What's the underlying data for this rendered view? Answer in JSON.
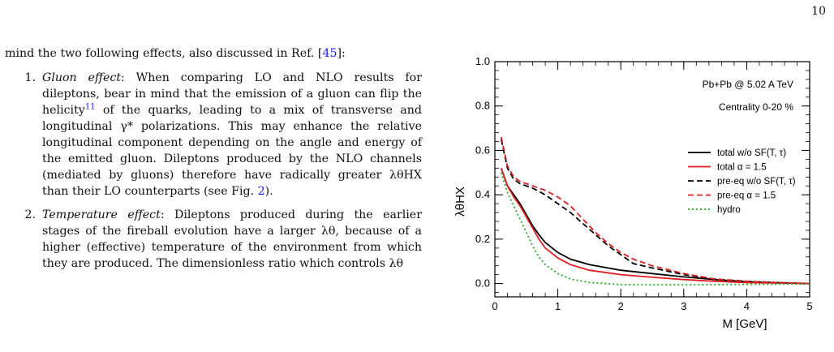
{
  "page": {
    "number": "10"
  },
  "text": {
    "intro_before": "mind the two following effects, also discussed in Ref. [",
    "intro_ref": "45",
    "intro_after": "]:",
    "items": [
      {
        "num": "1.",
        "title": "Gluon effect",
        "part1": ": When comparing LO and NLO results for dileptons, bear in mind that the emission of a gluon can flip the helicity",
        "footnote": "11",
        "part2": " of the quarks, leading to a mix of transverse and longitudinal γ* polarizations. This may enhance the relative longitudinal component depending on the angle and energy of the emitted gluon. Dileptons produced by the NLO channels (mediated by gluons) therefore have radically greater λθHX than their LO counterparts (see Fig. ",
        "figref": "2",
        "part3": ")."
      },
      {
        "num": "2.",
        "title": "Temperature effect",
        "part1": ": Dileptons produced during the earlier stages of the fireball evolution have a larger λθ, because of a higher (effective) temperature of the environment from which they are produced. The dimensionless ratio which controls λθ",
        "footnote": "",
        "part2": "",
        "figref": "",
        "part3": ""
      }
    ]
  },
  "chart_data": {
    "type": "line",
    "annotations": [
      "Pb+Pb @ 5.02 A TeV",
      "Centrality 0-20 %"
    ],
    "xlabel": "M [GeV]",
    "ylabel": "λθHX",
    "xlim": [
      0,
      5
    ],
    "ylim": [
      -0.06,
      1.0
    ],
    "xticks": [
      "0",
      "1",
      "2",
      "3",
      "4",
      "5"
    ],
    "yticks": [
      "0.0",
      "0.2",
      "0.4",
      "0.6",
      "0.8",
      "1.0"
    ],
    "grid": false,
    "legend_position": "right",
    "series": [
      {
        "name": "total w/o SF(T, τ)",
        "color": "#000000",
        "dash": "solid",
        "x": [
          0.1,
          0.2,
          0.3,
          0.4,
          0.5,
          0.6,
          0.7,
          0.8,
          1.0,
          1.2,
          1.5,
          2.0,
          2.5,
          3.0,
          3.5,
          4.0,
          4.5,
          5.0
        ],
        "y": [
          0.52,
          0.44,
          0.4,
          0.36,
          0.31,
          0.26,
          0.22,
          0.185,
          0.14,
          0.11,
          0.085,
          0.06,
          0.045,
          0.03,
          0.018,
          0.008,
          0.004,
          0.0
        ]
      },
      {
        "name": "total α = 1.5",
        "color": "#e02020",
        "dash": "solid",
        "x": [
          0.1,
          0.2,
          0.3,
          0.4,
          0.5,
          0.6,
          0.7,
          0.8,
          1.0,
          1.2,
          1.5,
          2.0,
          2.5,
          3.0,
          3.5,
          4.0,
          4.5,
          5.0
        ],
        "y": [
          0.52,
          0.44,
          0.39,
          0.35,
          0.3,
          0.25,
          0.2,
          0.16,
          0.115,
          0.085,
          0.06,
          0.04,
          0.028,
          0.018,
          0.01,
          0.004,
          0.002,
          0.0
        ]
      },
      {
        "name": "pre-eq w/o SF(T, τ)",
        "color": "#000000",
        "dash": "dashed",
        "x": [
          0.1,
          0.2,
          0.3,
          0.4,
          0.5,
          0.6,
          0.8,
          1.0,
          1.2,
          1.4,
          1.6,
          1.8,
          2.0,
          2.2,
          2.5,
          3.0,
          3.5,
          4.0,
          4.5,
          5.0
        ],
        "y": [
          0.65,
          0.52,
          0.47,
          0.45,
          0.44,
          0.43,
          0.4,
          0.36,
          0.32,
          0.27,
          0.22,
          0.17,
          0.13,
          0.09,
          0.07,
          0.04,
          0.02,
          0.01,
          0.004,
          0.0
        ]
      },
      {
        "name": "pre-eq α = 1.5",
        "color": "#e02020",
        "dash": "dashed",
        "x": [
          0.1,
          0.2,
          0.3,
          0.4,
          0.5,
          0.6,
          0.8,
          1.0,
          1.2,
          1.4,
          1.6,
          1.8,
          2.0,
          2.2,
          2.5,
          3.0,
          3.5,
          4.0,
          4.5,
          5.0
        ],
        "y": [
          0.66,
          0.53,
          0.48,
          0.46,
          0.45,
          0.44,
          0.42,
          0.39,
          0.35,
          0.29,
          0.23,
          0.18,
          0.14,
          0.11,
          0.08,
          0.045,
          0.02,
          0.01,
          0.004,
          0.0
        ]
      },
      {
        "name": "hydro",
        "color": "#22aa22",
        "dash": "dotted",
        "x": [
          0.1,
          0.2,
          0.3,
          0.4,
          0.5,
          0.6,
          0.7,
          0.8,
          1.0,
          1.2,
          1.5,
          2.0,
          2.5,
          3.0,
          3.5,
          4.0,
          4.5,
          5.0
        ],
        "y": [
          0.5,
          0.41,
          0.35,
          0.29,
          0.23,
          0.17,
          0.12,
          0.085,
          0.045,
          0.02,
          0.005,
          -0.005,
          -0.006,
          -0.006,
          -0.005,
          -0.004,
          -0.003,
          -0.002
        ]
      }
    ]
  }
}
